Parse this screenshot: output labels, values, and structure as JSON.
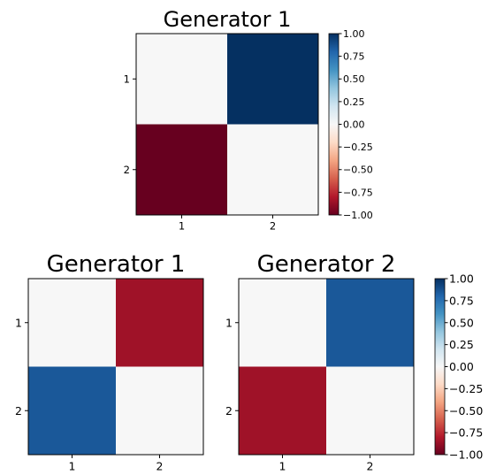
{
  "chart_data": [
    {
      "type": "heatmap",
      "title": "Generator 1",
      "x_ticks": [
        "1",
        "2"
      ],
      "y_ticks": [
        "1",
        "2"
      ],
      "matrix": [
        [
          0.0,
          1.0
        ],
        [
          -1.0,
          0.0
        ]
      ],
      "colormap": "RdBu",
      "clim": [
        -1.0,
        1.0
      ],
      "colorbar_ticks": [
        "1.00",
        "0.75",
        "0.50",
        "0.25",
        "0.00",
        "−0.25",
        "−0.50",
        "−0.75",
        "−1.00"
      ]
    },
    {
      "type": "heatmap",
      "title": "Generator 1",
      "x_ticks": [
        "1",
        "2"
      ],
      "y_ticks": [
        "1",
        "2"
      ],
      "matrix": [
        [
          0.0,
          -0.85
        ],
        [
          0.85,
          0.0
        ]
      ],
      "colormap": "RdBu",
      "clim": [
        -1.0,
        1.0
      ]
    },
    {
      "type": "heatmap",
      "title": "Generator 2",
      "x_ticks": [
        "1",
        "2"
      ],
      "y_ticks": [
        "1",
        "2"
      ],
      "matrix": [
        [
          0.0,
          0.85
        ],
        [
          -0.85,
          0.0
        ]
      ],
      "colormap": "RdBu",
      "clim": [
        -1.0,
        1.0
      ],
      "colorbar_ticks": [
        "1.00",
        "0.75",
        "0.50",
        "0.25",
        "0.00",
        "−0.25",
        "−0.50",
        "−0.75",
        "−1.00"
      ]
    }
  ]
}
